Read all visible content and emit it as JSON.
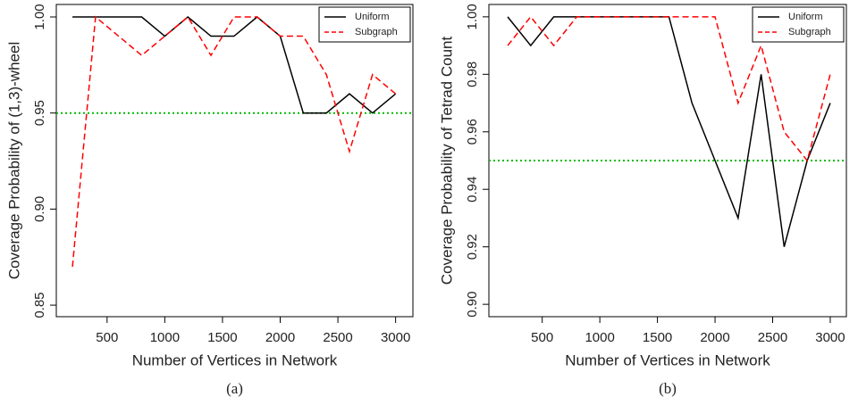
{
  "chart_data": [
    {
      "type": "line",
      "caption": "(a)",
      "xlabel": "Number of Vertices in Network",
      "ylabel": "Coverage Probability of (1,3)-wheel",
      "x": [
        200,
        400,
        600,
        800,
        1000,
        1200,
        1400,
        1600,
        1800,
        2000,
        2200,
        2400,
        2600,
        2800,
        3000
      ],
      "series": [
        {
          "name": "Uniform",
          "color": "#000000",
          "dash": "solid",
          "values": [
            1,
            1,
            1,
            1,
            0.99,
            1,
            0.99,
            0.99,
            1,
            0.99,
            0.95,
            0.95,
            0.96,
            0.95,
            0.96
          ]
        },
        {
          "name": "Subgraph",
          "color": "#ff0000",
          "dash": "dashed",
          "values": [
            0.87,
            1,
            0.99,
            0.98,
            0.99,
            1,
            0.98,
            1,
            1,
            0.99,
            0.99,
            0.97,
            0.93,
            0.97,
            0.96
          ]
        }
      ],
      "hline": 0.95,
      "hline_color": "#00bb00",
      "xlim": [
        60,
        3150
      ],
      "ylim": [
        0.844,
        1.0065
      ],
      "xticks": [
        500,
        1000,
        1500,
        2000,
        2500,
        3000
      ],
      "yticks": [
        {
          "value": 0.85,
          "label": "0.85"
        },
        {
          "value": 0.9,
          "label": "0.90"
        },
        {
          "value": 0.95,
          "label": "0.95"
        },
        {
          "value": 1,
          "label": "1.00"
        }
      ],
      "legend": "top-right"
    },
    {
      "type": "line",
      "caption": "(b)",
      "xlabel": "Number of Vertices in Network",
      "ylabel": "Coverage Probability of Tetrad Count",
      "x": [
        200,
        400,
        600,
        800,
        1000,
        1200,
        1400,
        1600,
        1800,
        2000,
        2200,
        2400,
        2600,
        2800,
        3000
      ],
      "series": [
        {
          "name": "Uniform",
          "color": "#000000",
          "dash": "solid",
          "values": [
            1,
            0.99,
            1,
            1,
            1,
            1,
            1,
            1,
            0.97,
            0.95,
            0.93,
            0.98,
            0.92,
            0.95,
            0.97
          ]
        },
        {
          "name": "Subgraph",
          "color": "#ff0000",
          "dash": "dashed",
          "values": [
            0.99,
            1,
            0.99,
            1,
            1,
            1,
            1,
            1,
            1,
            1,
            0.97,
            0.99,
            0.96,
            0.95,
            0.98
          ]
        }
      ],
      "hline": 0.95,
      "hline_color": "#00bb00",
      "xlim": [
        37,
        3140
      ],
      "ylim": [
        0.8957,
        1.0043
      ],
      "xticks": [
        500,
        1000,
        1500,
        2000,
        2500,
        3000
      ],
      "yticks": [
        {
          "value": 0.9,
          "label": "0.90"
        },
        {
          "value": 0.92,
          "label": "0.92"
        },
        {
          "value": 0.94,
          "label": "0.94"
        },
        {
          "value": 0.96,
          "label": "0.96"
        },
        {
          "value": 0.98,
          "label": "0.98"
        },
        {
          "value": 1,
          "label": "1.00"
        }
      ],
      "legend": "top-right"
    }
  ]
}
